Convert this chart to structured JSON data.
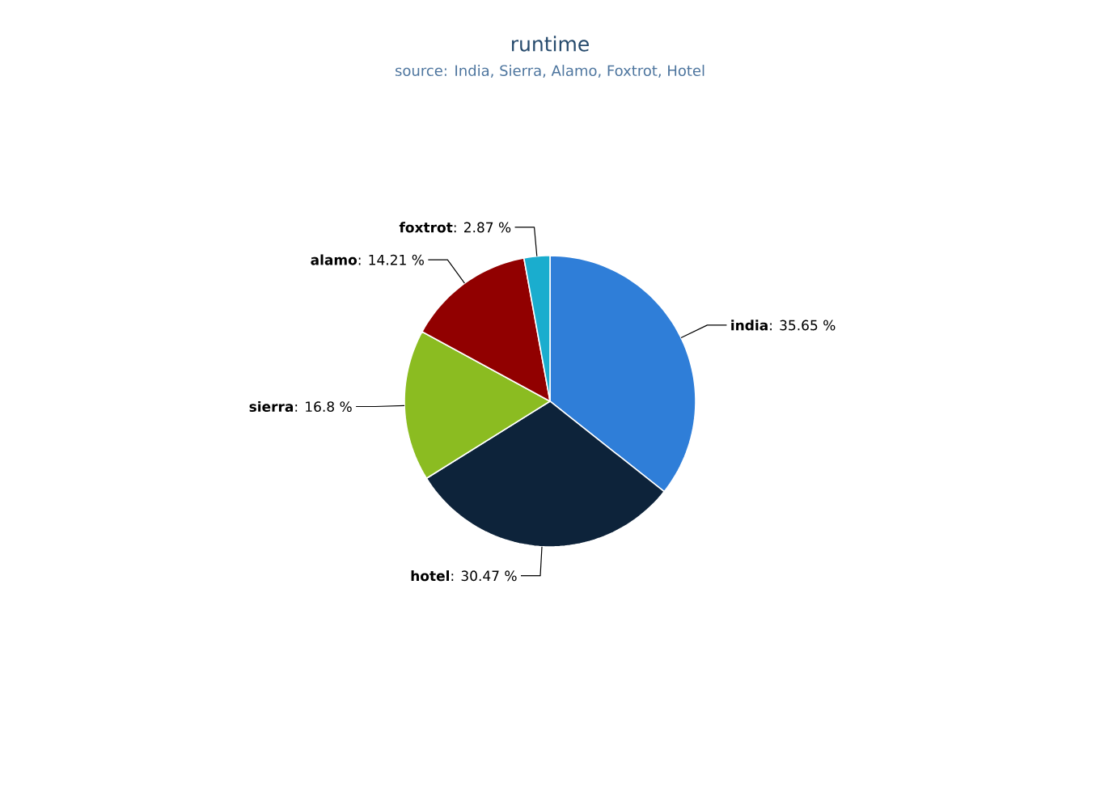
{
  "chart_data": {
    "type": "pie",
    "title": "runtime",
    "subtitle": "source: India, Sierra, Alamo, Foxtrot, Hotel",
    "categories": [
      "india",
      "hotel",
      "sierra",
      "alamo",
      "foxtrot"
    ],
    "values": [
      35.65,
      30.47,
      16.8,
      14.21,
      2.87
    ],
    "colors": [
      "#2f7ed8",
      "#0d233a",
      "#8bbc21",
      "#910000",
      "#1aadce"
    ],
    "value_labels": [
      ": 35.65 %",
      ": 30.47 %",
      ": 16.8 %",
      ": 14.21 %",
      ": 2.87 %"
    ]
  }
}
